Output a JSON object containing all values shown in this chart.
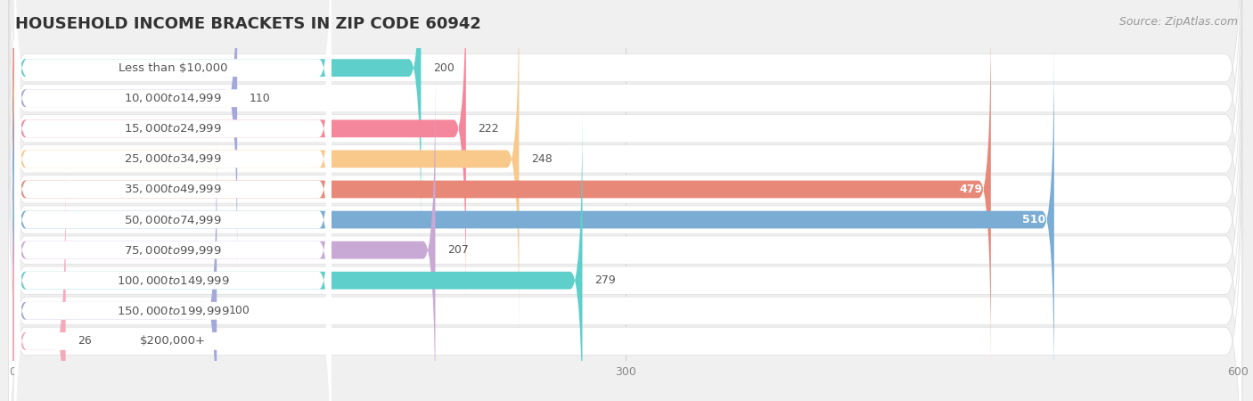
{
  "title": "HOUSEHOLD INCOME BRACKETS IN ZIP CODE 60942",
  "source": "Source: ZipAtlas.com",
  "categories": [
    "Less than $10,000",
    "$10,000 to $14,999",
    "$15,000 to $24,999",
    "$25,000 to $34,999",
    "$35,000 to $49,999",
    "$50,000 to $74,999",
    "$75,000 to $99,999",
    "$100,000 to $149,999",
    "$150,000 to $199,999",
    "$200,000+"
  ],
  "values": [
    200,
    110,
    222,
    248,
    479,
    510,
    207,
    279,
    100,
    26
  ],
  "bar_colors": [
    "#5ECFCA",
    "#A5A8DC",
    "#F5879C",
    "#F8C98A",
    "#E88878",
    "#7BADD4",
    "#C8A8D4",
    "#5ECFCA",
    "#A5A8DC",
    "#F5AABB"
  ],
  "xlim": [
    0,
    600
  ],
  "xticks": [
    0,
    300,
    600
  ],
  "figure_bg": "#f0f0f0",
  "row_bg": "#ffffff",
  "title_fontsize": 13,
  "label_fontsize": 9.5,
  "value_fontsize": 9,
  "source_fontsize": 9,
  "label_color": "#555555",
  "value_color_inside": "#ffffff",
  "value_color_outside": "#555555",
  "inside_threshold": 350
}
